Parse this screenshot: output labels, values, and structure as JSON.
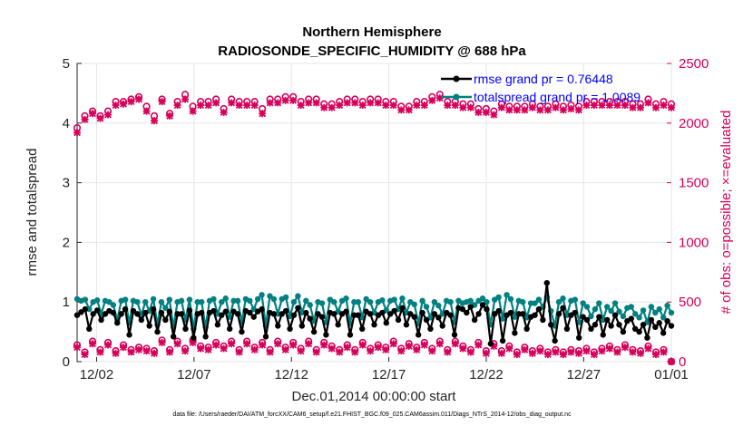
{
  "chart_data": {
    "type": "line",
    "title": "Northern Hemisphere",
    "subtitle": "RADIOSONDE_SPECIFIC_HUMIDITY @ 688 hPa",
    "xlabel": "Dec.01,2014 00:00:00 start",
    "ylabel": "rmse and totalspread",
    "y2label": "# of obs: o=possible; ×=evaluated",
    "xlim": [
      0,
      30.5
    ],
    "ylim": [
      0,
      5
    ],
    "y2lim": [
      0,
      2500
    ],
    "xtick_values": [
      1,
      6,
      11,
      16,
      21,
      26,
      30.5
    ],
    "xtick_labels": [
      "12/02",
      "12/07",
      "12/12",
      "12/17",
      "12/22",
      "12/27",
      "01/01"
    ],
    "ytick_labels": [
      "0",
      "1",
      "2",
      "3",
      "4",
      "5"
    ],
    "y2tick_labels": [
      "0",
      "500",
      "1000",
      "1500",
      "2000",
      "2500"
    ],
    "footer": "data file: /Users/raeder/DAI/ATM_forcXX/CAM6_setup/f.e21.FHIST_BGC.f09_025.CAM6assim.011/Diags_NTrS_2014-12/obs_diag_output.nc",
    "series": [
      {
        "name": "rmse",
        "legend": "rmse grand pr = 0.76448",
        "color": "#000000",
        "axis": "left",
        "marker": "dot",
        "values": [
          0.78,
          0.83,
          0.88,
          0.55,
          0.8,
          0.86,
          0.7,
          0.8,
          0.85,
          0.82,
          0.65,
          0.8,
          0.88,
          0.45,
          0.85,
          0.8,
          0.7,
          0.82,
          0.6,
          0.88,
          0.5,
          0.82,
          0.7,
          0.84,
          0.42,
          0.8,
          0.8,
          0.55,
          0.86,
          0.4,
          0.8,
          0.82,
          0.42,
          0.82,
          0.85,
          0.62,
          0.78,
          0.84,
          0.55,
          0.84,
          0.8,
          0.5,
          0.85,
          0.82,
          0.75,
          0.84,
          0.88,
          0.42,
          0.82,
          0.8,
          0.6,
          0.8,
          0.85,
          0.55,
          0.78,
          0.9,
          0.6,
          0.82,
          0.72,
          0.5,
          0.8,
          0.75,
          0.45,
          0.82,
          0.8,
          0.62,
          0.8,
          0.84,
          0.45,
          0.78,
          0.78,
          0.55,
          0.84,
          0.8,
          0.62,
          0.78,
          0.82,
          0.65,
          0.8,
          0.85,
          0.7,
          0.9,
          0.62,
          0.8,
          0.75,
          0.45,
          0.82,
          0.7,
          0.55,
          0.8,
          0.74,
          0.6,
          0.82,
          0.78,
          0.45,
          0.9,
          0.88,
          0.82,
          0.92,
          0.7,
          0.8,
          0.95,
          0.88,
          0.3,
          0.8,
          0.85,
          0.35,
          0.78,
          0.82,
          0.48,
          0.8,
          0.8,
          0.55,
          0.75,
          0.78,
          0.88,
          0.7,
          1.32,
          0.62,
          0.35,
          0.8,
          0.9,
          0.55,
          0.78,
          0.82,
          0.4,
          0.75,
          0.7,
          0.55,
          0.62,
          0.75,
          0.45,
          0.7,
          0.6,
          0.78,
          0.62,
          0.5,
          0.68,
          0.72,
          0.55,
          0.5,
          0.62,
          0.4,
          0.7,
          0.58,
          0.65,
          0.48,
          0.68,
          0.6
        ]
      },
      {
        "name": "totalspread",
        "legend": "totalspread grand pr = 1.0089",
        "color": "#008080",
        "axis": "left",
        "marker": "dot",
        "values": [
          1.05,
          1.02,
          1.04,
          0.88,
          1.0,
          1.03,
          0.8,
          1.02,
          1.0,
          0.95,
          0.7,
          1.02,
          1.04,
          0.65,
          1.02,
          1.0,
          0.78,
          1.0,
          0.85,
          1.05,
          0.62,
          1.0,
          0.9,
          1.04,
          0.58,
          1.0,
          1.02,
          0.7,
          1.04,
          0.55,
          1.0,
          1.0,
          0.58,
          1.02,
          1.05,
          0.8,
          1.0,
          1.06,
          0.75,
          1.02,
          1.02,
          0.66,
          1.05,
          1.02,
          0.88,
          1.05,
          1.12,
          0.6,
          1.1,
          1.05,
          0.8,
          1.05,
          1.08,
          0.76,
          1.0,
          1.1,
          0.82,
          1.02,
          0.95,
          0.68,
          1.0,
          0.98,
          0.66,
          1.04,
          1.0,
          0.84,
          1.02,
          1.06,
          0.64,
          1.0,
          1.0,
          0.74,
          1.05,
          1.0,
          0.82,
          1.0,
          1.03,
          0.86,
          1.02,
          1.04,
          0.88,
          1.06,
          0.82,
          1.0,
          0.96,
          0.64,
          1.02,
          0.92,
          0.74,
          1.0,
          0.94,
          0.8,
          1.02,
          1.0,
          0.66,
          1.02,
          0.98,
          1.0,
          1.02,
          0.95,
          1.02,
          1.06,
          1.0,
          0.62,
          1.04,
          1.08,
          0.72,
          1.12,
          1.05,
          0.75,
          1.02,
          1.0,
          0.74,
          0.98,
          0.98,
          1.04,
          0.92,
          1.08,
          0.85,
          0.6,
          1.0,
          1.06,
          0.78,
          1.02,
          1.04,
          0.66,
          0.98,
          0.92,
          0.76,
          0.88,
          0.98,
          0.7,
          0.92,
          0.85,
          0.98,
          0.84,
          0.76,
          0.9,
          0.92,
          0.8,
          0.74,
          0.86,
          0.66,
          0.92,
          0.82,
          0.88,
          0.74,
          0.94,
          0.82
        ]
      },
      {
        "name": "obs possible",
        "color": "#d6005a",
        "axis": "right",
        "marker": "circle",
        "values": [
          1960,
          2060,
          2100,
          2060,
          2100,
          2180,
          2180,
          2200,
          2220,
          2140,
          2060,
          2200,
          2080,
          2180,
          2240,
          2140,
          2180,
          2180,
          2200,
          2120,
          2200,
          2180,
          2180,
          2180,
          2120,
          2200,
          2200,
          2220,
          2220,
          2180,
          2200,
          2200,
          2160,
          2160,
          2180,
          2200,
          2200,
          2180,
          2200,
          2200,
          2180,
          2180,
          2140,
          2140,
          2180,
          2180,
          2220,
          2240,
          2180,
          2180,
          2160,
          2160,
          2120,
          2120,
          2100,
          2160,
          2140,
          2140,
          2140,
          2160,
          2140,
          2140,
          2160,
          2140,
          2150,
          2140,
          2180,
          2180,
          2180,
          2180,
          2180,
          2180,
          2160,
          2160,
          2200,
          2160,
          2180,
          2160
        ]
      },
      {
        "name": "obs evaluated",
        "color": "#d6005a",
        "axis": "right",
        "marker": "x",
        "values": [
          1920,
          2030,
          2080,
          2040,
          2070,
          2150,
          2160,
          2180,
          2200,
          2100,
          2020,
          2180,
          2060,
          2150,
          2200,
          2100,
          2150,
          2150,
          2170,
          2090,
          2170,
          2150,
          2150,
          2150,
          2080,
          2170,
          2170,
          2190,
          2190,
          2150,
          2170,
          2170,
          2130,
          2130,
          2150,
          2170,
          2170,
          2150,
          2170,
          2170,
          2150,
          2150,
          2110,
          2110,
          2150,
          2150,
          2190,
          2210,
          2150,
          2150,
          2130,
          2130,
          2090,
          2090,
          2070,
          2130,
          2110,
          2110,
          2110,
          2130,
          2110,
          2110,
          2130,
          2110,
          2120,
          2110,
          2150,
          2150,
          2150,
          2150,
          2150,
          2150,
          2130,
          2130,
          2170,
          2130,
          2150,
          2130
        ]
      },
      {
        "name": "obs low possible",
        "color": "#d6005a",
        "axis": "right",
        "marker": "circle",
        "values": [
          140,
          80,
          170,
          100,
          160,
          90,
          140,
          100,
          120,
          110,
          90,
          180,
          100,
          170,
          110,
          180,
          130,
          120,
          160,
          130,
          170,
          100,
          170,
          120,
          160,
          100,
          170,
          120,
          160,
          110,
          170,
          100,
          160,
          130,
          100,
          140,
          100,
          160,
          110,
          140,
          120,
          170,
          110,
          150,
          120,
          160,
          110,
          170,
          100,
          170,
          130,
          100,
          160,
          90,
          150,
          90,
          130,
          80,
          120,
          90,
          110,
          80,
          100,
          80,
          100,
          90,
          110,
          80,
          110,
          130,
          100,
          140,
          100,
          90,
          130,
          80,
          100,
          0
        ]
      },
      {
        "name": "obs low evaluated",
        "color": "#d6005a",
        "axis": "right",
        "marker": "x",
        "values": [
          120,
          60,
          150,
          80,
          140,
          70,
          120,
          80,
          100,
          90,
          70,
          160,
          80,
          150,
          90,
          160,
          110,
          100,
          140,
          110,
          150,
          80,
          150,
          100,
          140,
          80,
          150,
          100,
          140,
          90,
          150,
          80,
          140,
          110,
          80,
          120,
          80,
          140,
          90,
          120,
          100,
          150,
          90,
          130,
          100,
          140,
          90,
          150,
          80,
          150,
          110,
          80,
          140,
          70,
          130,
          70,
          110,
          60,
          100,
          70,
          90,
          60,
          80,
          60,
          80,
          70,
          90,
          60,
          90,
          110,
          80,
          120,
          80,
          70,
          110,
          60,
          80,
          0
        ]
      }
    ]
  }
}
